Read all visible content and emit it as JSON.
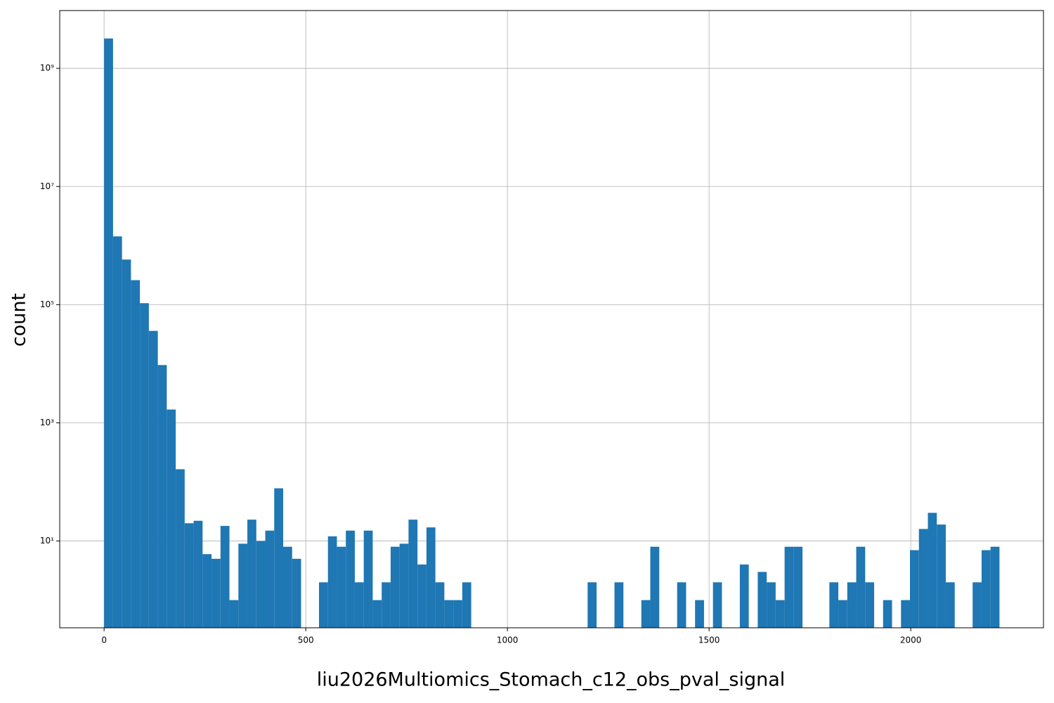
{
  "chart_data": {
    "type": "histogram",
    "xlabel": "liu2026Multiomics_Stomach_c12_obs_pval_signal",
    "ylabel": "count",
    "bins": [
      0,
      22.2,
      44.4,
      66.6,
      88.8,
      111,
      133.2,
      155.4,
      177.6,
      199.8,
      222,
      244.2,
      266.4,
      288.6,
      310.8,
      333,
      355.2,
      377.4,
      399.6,
      421.8,
      444,
      466.2,
      488.4,
      510.6,
      532.8,
      555,
      577.2,
      599.4,
      621.6,
      643.8,
      666,
      688.2,
      710.4,
      732.6,
      754.8,
      777,
      799.2,
      821.4,
      843.6,
      865.8,
      888,
      910.2,
      932.4,
      954.6,
      976.8,
      999,
      1021.2,
      1043.4,
      1065.6,
      1087.8,
      1110,
      1132.2,
      1154.4,
      1176.6,
      1198.8,
      1221,
      1243.2,
      1265.4,
      1287.6,
      1309.8,
      1332,
      1354.2,
      1376.4,
      1398.6,
      1420.8,
      1443,
      1465.2,
      1487.4,
      1509.6,
      1531.8,
      1554,
      1576.2,
      1598.4,
      1620.6,
      1642.8,
      1665,
      1687.2,
      1709.4,
      1731.6,
      1753.8,
      1776,
      1798.2,
      1820.4,
      1842.6,
      1864.8,
      1887,
      1909.2,
      1931.4,
      1953.6,
      1975.8,
      1998,
      2020.2,
      2042.4,
      2064.6,
      2086.8,
      2109,
      2131.2,
      2153.4,
      2175.6,
      2197.8,
      2220
    ],
    "values": [
      3200000000,
      1430000,
      580000,
      260000,
      106000,
      36000,
      9500,
      1680,
      164,
      20,
      22,
      6,
      5,
      18,
      1,
      9,
      23,
      10,
      15,
      78,
      8,
      5,
      0,
      0,
      2,
      12,
      8,
      15,
      2,
      15,
      1,
      2,
      8,
      9,
      23,
      4,
      17,
      2,
      1,
      1,
      2,
      0,
      0,
      0,
      0,
      0,
      0,
      0,
      0,
      0,
      0,
      0,
      0,
      0,
      2,
      0,
      0,
      2,
      0,
      0,
      1,
      8,
      0,
      0,
      2,
      0,
      1,
      0,
      2,
      0,
      0,
      4,
      0,
      3,
      2,
      1,
      8,
      8,
      0,
      0,
      0,
      2,
      1,
      2,
      8,
      2,
      0,
      1,
      0,
      1,
      7,
      16,
      30,
      19,
      2,
      0,
      0,
      2,
      7,
      8
    ],
    "color": "#1f77b4",
    "xlim": [
      -110,
      2329
    ],
    "ylim": [
      0.34,
      9500000000
    ],
    "log_y": true,
    "grid": true,
    "xticks": [
      0,
      500,
      1000,
      1500,
      2000
    ],
    "yticks": [
      {
        "value": 10,
        "label": "10¹"
      },
      {
        "value": 1000,
        "label": "10³"
      },
      {
        "value": 100000,
        "label": "10⁵"
      },
      {
        "value": 10000000,
        "label": "10⁷"
      },
      {
        "value": 1000000000,
        "label": "10⁹"
      }
    ]
  }
}
